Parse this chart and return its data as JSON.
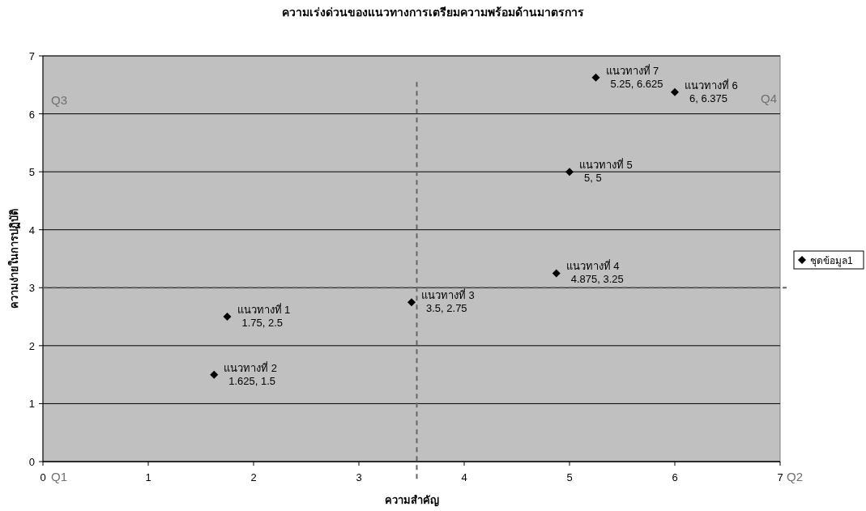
{
  "chart_data": {
    "type": "scatter",
    "title": "ความเร่งด่วนของแนวทางการเตรียมความพร้อมด้านมาตรการ",
    "xlabel": "ความสำคัญ",
    "ylabel": "ความง่ายในการปฏิบัติ",
    "series": [
      {
        "name": "ชุดข้อมูล1",
        "color": "#000000",
        "x": [
          1.75,
          1.625,
          3.5,
          4.875,
          5,
          6,
          5.25
        ],
        "values": [
          2.5,
          1.5,
          2.75,
          3.25,
          5,
          6.375,
          6.625
        ],
        "value_labels": [
          "แนวทางที่ 1\n1.75, 2.5",
          "แนวทางที่ 2\n1.625, 1.5",
          "แนวทางที่ 3\n3.5, 2.75",
          "แนวทางที่ 4\n4.875, 3.25",
          "แนวทางที่ 5\n5, 5",
          "แนวทางที่ 6\n6, 6.375",
          "แนวทางที่ 7\n5.25, 6.625"
        ]
      }
    ],
    "xlim": [
      0,
      7
    ],
    "xticks": [
      0,
      1,
      2,
      3,
      4,
      5,
      6,
      7
    ],
    "ylim": [
      0,
      7
    ],
    "yticks": [
      0,
      1,
      2,
      3,
      4,
      5,
      6,
      7
    ],
    "ref_lines": [
      {
        "axis": "x",
        "value": 3.55,
        "color": "#666666",
        "line_style": "dashed"
      },
      {
        "axis": "y",
        "value": 3,
        "color": "#666666",
        "line_style": "dashed"
      }
    ],
    "annotations": [
      "Q1",
      "Q2",
      "Q3",
      "Q4"
    ],
    "grid": "y",
    "legend": "right",
    "marker": "diamond"
  }
}
